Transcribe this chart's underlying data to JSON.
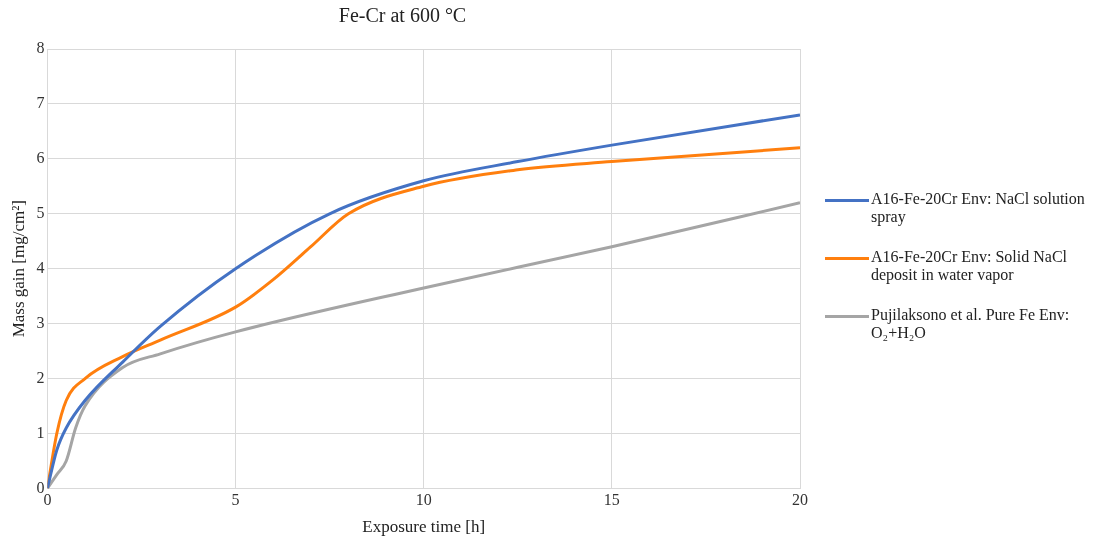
{
  "chart_data": {
    "type": "line",
    "title": "Fe-Cr at 600 °C",
    "xlabel": "Exposure time [h]",
    "ylabel": "Mass gain [mg/cm²]",
    "xlim": [
      0,
      20
    ],
    "xticks": [
      0,
      5,
      10,
      15,
      20
    ],
    "ylim": [
      0,
      8
    ],
    "yticks": [
      0,
      1,
      2,
      3,
      4,
      5,
      6,
      7,
      8
    ],
    "grid": true,
    "legend": "right",
    "marker": "none",
    "line_style": "solid",
    "series": [
      {
        "name": "A16-Fe-20Cr Env: NaCl solution spray",
        "color": "#4472c4",
        "x": [
          0,
          0.25,
          0.5,
          1,
          2,
          3,
          5,
          7.5,
          10,
          12.5,
          15,
          20
        ],
        "values": [
          0,
          0.7,
          1.1,
          1.6,
          2.3,
          2.95,
          4.0,
          5.0,
          5.6,
          5.95,
          6.25,
          6.8
        ]
      },
      {
        "name": "A16-Fe-20Cr Env: Solid NaCl deposit in water vapor",
        "color": "#ff7f0e",
        "x": [
          0,
          0.25,
          0.5,
          1,
          2,
          3,
          5,
          6,
          7,
          8,
          10,
          12.5,
          15,
          20
        ],
        "values": [
          0,
          1.0,
          1.6,
          2.0,
          2.4,
          2.7,
          3.3,
          3.8,
          4.4,
          5.0,
          5.5,
          5.8,
          5.95,
          6.2
        ]
      },
      {
        "name": "Pujilaksono et al. Pure Fe Env: O₂+H₂O",
        "color": "#a5a5a5",
        "x": [
          0,
          0.25,
          0.5,
          0.75,
          1,
          2,
          3,
          5,
          10,
          15,
          20
        ],
        "values": [
          0,
          0.25,
          0.5,
          1.1,
          1.5,
          2.2,
          2.45,
          2.85,
          3.65,
          4.4,
          5.2
        ]
      }
    ]
  }
}
